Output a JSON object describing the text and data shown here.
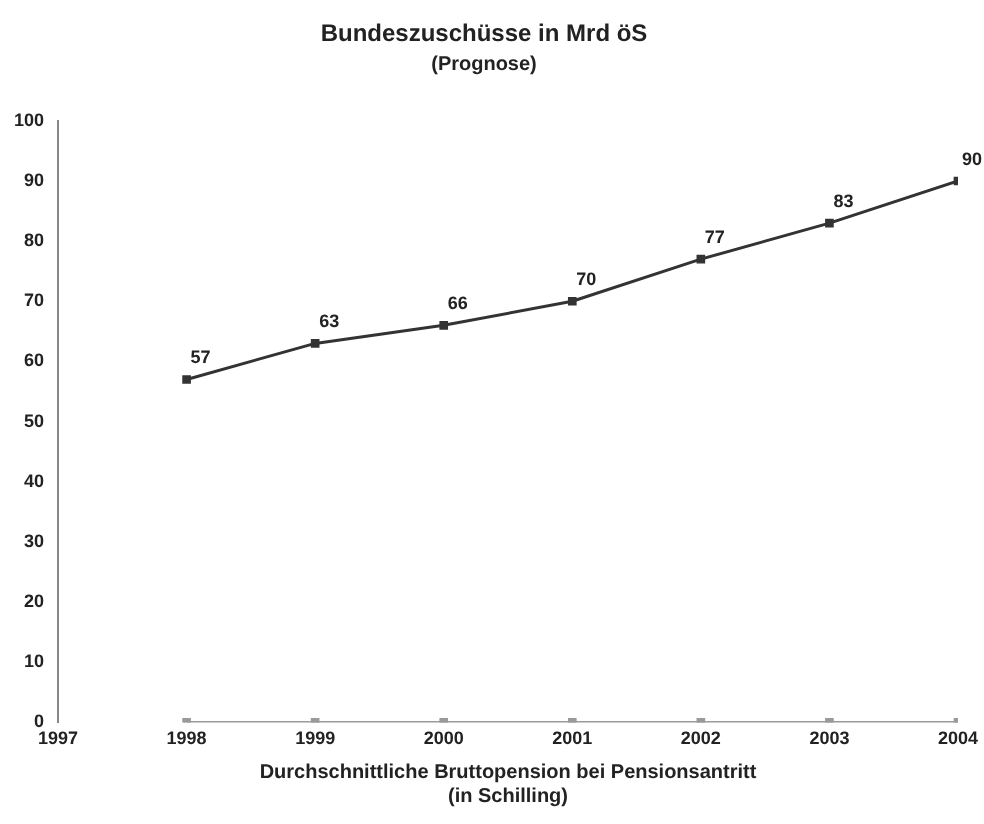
{
  "chart_data": {
    "type": "line",
    "title": "Bundeszuschüsse in Mrd öS",
    "subtitle": "(Prognose)",
    "xlabel": "Durchschnittliche Bruttopension bei Pensionsantritt\n(in Schilling)",
    "x": [
      1998,
      1999,
      2000,
      2001,
      2002,
      2003,
      2004
    ],
    "series": [
      {
        "color": "#333333",
        "values": [
          57,
          63,
          66,
          70,
          77,
          83,
          90
        ],
        "value_labels": [
          "57",
          "63",
          "66",
          "70",
          "77",
          "83",
          "90"
        ]
      },
      {
        "color": "#9a9a9a",
        "values": [
          0,
          0,
          0,
          0,
          0,
          0,
          0
        ]
      }
    ],
    "xlim": [
      1997,
      2004
    ],
    "xticks": [
      1997,
      1998,
      1999,
      2000,
      2001,
      2002,
      2003,
      2004
    ],
    "ylim": [
      0,
      100
    ],
    "yticks": [
      0,
      10,
      20,
      30,
      40,
      50,
      60,
      70,
      80,
      90,
      100
    ],
    "grid": false,
    "legend": false,
    "marker": "square",
    "line_style": "solid"
  }
}
